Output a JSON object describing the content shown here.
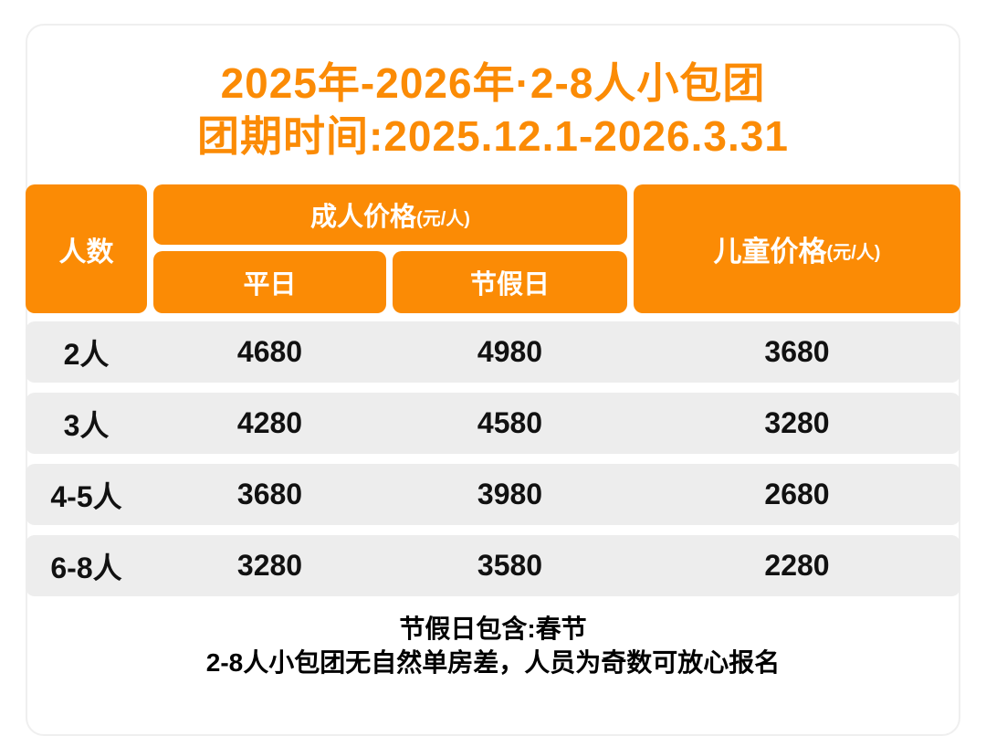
{
  "title": {
    "line1": "2025年-2026年·2-8人小包团",
    "line2": "团期时间:2025.12.1-2026.3.31"
  },
  "table": {
    "headers": {
      "people": "人数",
      "adult_label": "成人价格",
      "adult_unit": "(元/人)",
      "weekday": "平日",
      "holiday": "节假日",
      "child_label": "儿童价格",
      "child_unit": "(元/人)"
    },
    "rows": [
      {
        "people": "2人",
        "weekday": "4680",
        "holiday": "4980",
        "child": "3680"
      },
      {
        "people": "3人",
        "weekday": "4280",
        "holiday": "4580",
        "child": "3280"
      },
      {
        "people": "4-5人",
        "weekday": "3680",
        "holiday": "3980",
        "child": "2680"
      },
      {
        "people": "6-8人",
        "weekday": "3280",
        "holiday": "3580",
        "child": "2280"
      }
    ]
  },
  "footer": {
    "line1": "节假日包含:春节",
    "line2": "2-8人小包团无自然单房差，人员为奇数可放心报名"
  },
  "colors": {
    "accent": "#FB8B05",
    "row_bg": "#EDEDED",
    "header_text": "#FFFFFF",
    "body_text": "#111111",
    "card_border": "#EFEFEF"
  },
  "chart_data": {
    "type": "table",
    "title": "2025年-2026年·2-8人小包团",
    "subtitle": "团期时间:2025.12.1-2026.3.31",
    "columns": [
      "人数",
      "成人价格-平日(元/人)",
      "成人价格-节假日(元/人)",
      "儿童价格(元/人)"
    ],
    "rows": [
      [
        "2人",
        4680,
        4980,
        3680
      ],
      [
        "3人",
        4280,
        4580,
        3280
      ],
      [
        "4-5人",
        3680,
        3980,
        2680
      ],
      [
        "6-8人",
        3280,
        3580,
        2280
      ]
    ],
    "notes": [
      "节假日包含:春节",
      "2-8人小包团无自然单房差，人员为奇数可放心报名"
    ]
  }
}
